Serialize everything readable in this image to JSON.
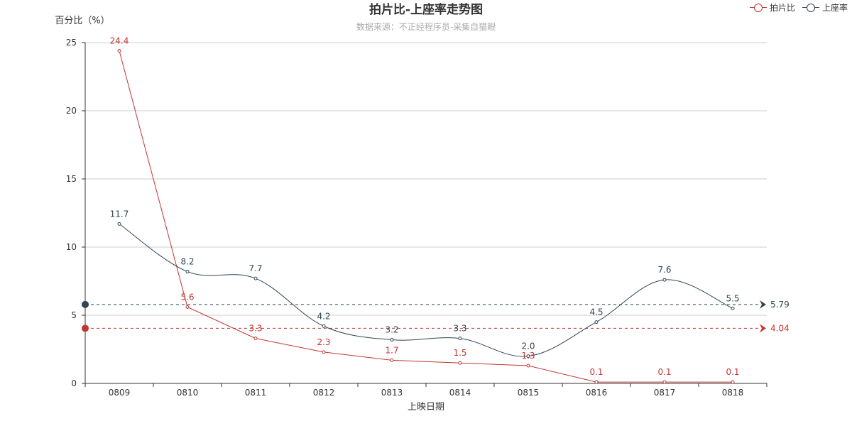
{
  "chart_data": {
    "type": "line",
    "title": "拍片比-上座率走势图",
    "subtitle": "数据来源：不正经程序员-采集自猫眼",
    "xlabel": "上映日期",
    "ylabel": "百分比（%）",
    "categories": [
      "0809",
      "0810",
      "0811",
      "0812",
      "0813",
      "0814",
      "0815",
      "0816",
      "0817",
      "0818"
    ],
    "ylim": [
      0,
      25
    ],
    "yticks": [
      "0",
      "5",
      "10",
      "15",
      "20",
      "25"
    ],
    "grid": true,
    "legend_position": "top-right",
    "series": [
      {
        "name": "拍片比",
        "color": "#c23531",
        "smooth": false,
        "values": [
          24.4,
          5.6,
          3.3,
          2.3,
          1.7,
          1.5,
          1.3,
          0.1,
          0.1,
          0.1
        ],
        "labels": [
          "24.4",
          "5.6",
          "3.3",
          "2.3",
          "1.7",
          "1.5",
          "1.3",
          "0.1",
          "0.1",
          "0.1"
        ],
        "average": 4.04,
        "average_label": "4.04"
      },
      {
        "name": "上座率",
        "color": "#2f4554",
        "smooth": true,
        "values": [
          11.7,
          8.2,
          7.7,
          4.2,
          3.2,
          3.3,
          2.0,
          4.5,
          7.6,
          5.5
        ],
        "labels": [
          "11.7",
          "8.2",
          "7.7",
          "4.2",
          "3.2",
          "3.3",
          "2.0",
          "4.5",
          "7.6",
          "5.5"
        ],
        "average": 5.79,
        "average_label": "5.79"
      }
    ]
  }
}
